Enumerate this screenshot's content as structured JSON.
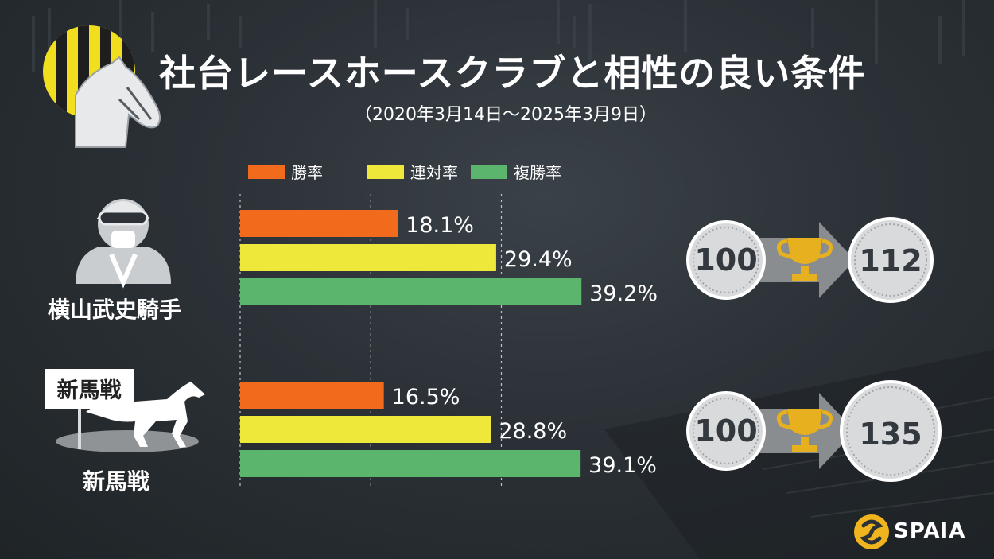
{
  "title": "社台レースホースクラブと相性の良い条件",
  "subtitle": "（2020年3月14日～2025年3月9日）",
  "brand": "SPAIA",
  "colors": {
    "win": "#f26a1b",
    "top2": "#eee83a",
    "top3": "#5bb56c",
    "gridline": "#bfc3c7",
    "badge_fill": "#d9dadb",
    "arrow": "#8a8d90",
    "trophy": "#e6b01f"
  },
  "chart_data": {
    "type": "bar",
    "orientation": "horizontal",
    "categories": [
      "横山武史騎手",
      "新馬戦"
    ],
    "series": [
      {
        "name": "勝率",
        "values": [
          18.1,
          16.5
        ]
      },
      {
        "name": "連対率",
        "values": [
          29.4,
          28.8
        ]
      },
      {
        "name": "複勝率",
        "values": [
          39.2,
          39.1
        ]
      }
    ],
    "value_labels": [
      [
        "18.1%",
        "16.5%"
      ],
      [
        "29.4%",
        "28.8%"
      ],
      [
        "39.2%",
        "39.1%"
      ]
    ],
    "xlim": [
      0,
      40
    ],
    "grid": true,
    "legend_position": "top",
    "badges": [
      {
        "from": "100",
        "to": "112",
        "icon": "trophy-icon"
      },
      {
        "from": "100",
        "to": "135",
        "icon": "trophy-icon"
      }
    ]
  },
  "labels": {
    "sign_text": "新馬戦"
  }
}
